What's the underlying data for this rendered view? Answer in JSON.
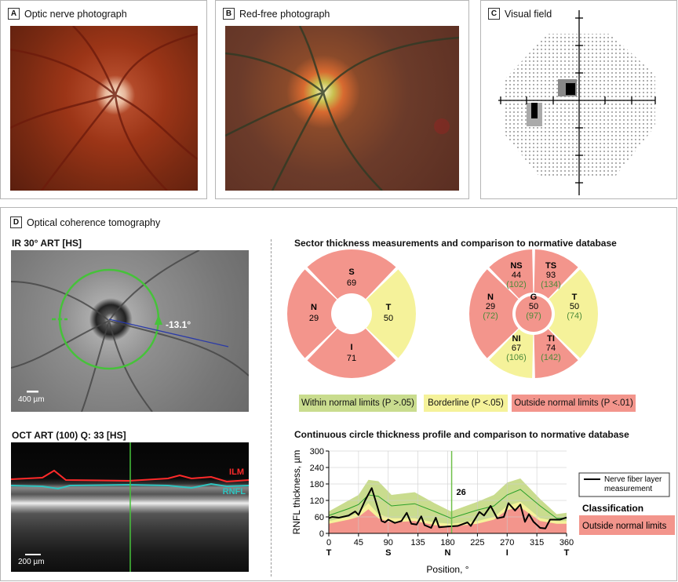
{
  "panels": {
    "a": {
      "letter": "A",
      "title": "Optic nerve photograph"
    },
    "b": {
      "letter": "B",
      "title": "Red-free photograph"
    },
    "c": {
      "letter": "C",
      "title": "Visual field"
    },
    "d": {
      "letter": "D",
      "title": "Optical coherence tomography"
    }
  },
  "ir_image": {
    "title": "IR 30° ART [HS]",
    "angle_label": "-13.1°",
    "scale_label": "400 µm"
  },
  "oct_image": {
    "title": "OCT ART (100) Q: 33 [HS]",
    "ilm_label": "ILM",
    "rnfl_label": "RNFL",
    "scale_label": "200 µm"
  },
  "sectors": {
    "title": "Sector thickness measurements and comparison to normative database",
    "colors": {
      "within": "#c9dc8e",
      "borderline": "#f5f29a",
      "outside": "#f3958c",
      "normative_text": "#4d8a3a"
    },
    "quadrant": [
      {
        "name": "S",
        "value": "69",
        "class": "outside"
      },
      {
        "name": "T",
        "value": "50",
        "class": "borderline"
      },
      {
        "name": "I",
        "value": "71",
        "class": "outside"
      },
      {
        "name": "N",
        "value": "29",
        "class": "outside"
      }
    ],
    "sectoral": [
      {
        "name": "TS",
        "value": "93",
        "normative": "(134)",
        "class": "outside"
      },
      {
        "name": "T",
        "value": "50",
        "normative": "(74)",
        "class": "borderline"
      },
      {
        "name": "TI",
        "value": "74",
        "normative": "(142)",
        "class": "outside"
      },
      {
        "name": "NI",
        "value": "67",
        "normative": "(106)",
        "class": "borderline"
      },
      {
        "name": "N",
        "value": "29",
        "normative": "(72)",
        "class": "outside"
      },
      {
        "name": "NS",
        "value": "44",
        "normative": "(102)",
        "class": "outside"
      },
      {
        "name": "G",
        "value": "50",
        "normative": "(97)",
        "class": "outside"
      }
    ],
    "legend": {
      "within": "Within normal limits (P >.05)",
      "borderline": "Borderline  (P <.05)",
      "outside": "Outside normal limits  (P <.01)"
    }
  },
  "chart_data": {
    "type": "line",
    "title": "Continuous circle thickness profile and comparison to normative database",
    "xlabel": "Position, °",
    "ylabel": "RNFL thickness, µm",
    "xlim": [
      0,
      360
    ],
    "ylim": [
      0,
      300
    ],
    "xticks": [
      0,
      45,
      90,
      135,
      180,
      225,
      270,
      315,
      360
    ],
    "yticks": [
      0,
      60,
      120,
      180,
      240,
      300
    ],
    "sector_labels": [
      {
        "x": 0,
        "label": "T"
      },
      {
        "x": 90,
        "label": "S"
      },
      {
        "x": 180,
        "label": "N"
      },
      {
        "x": 270,
        "label": "I"
      },
      {
        "x": 360,
        "label": "T"
      }
    ],
    "grid": true,
    "marker": {
      "x": 186,
      "label": "26"
    },
    "legend": {
      "line_label": "Nerve fiber layer measurement",
      "classification_title": "Classification",
      "classification_value": "Outside normal limits"
    },
    "series": [
      {
        "name": "Nerve fiber layer measurement",
        "x": [
          0,
          5,
          15,
          30,
          40,
          45,
          55,
          65,
          72,
          80,
          85,
          90,
          100,
          110,
          118,
          125,
          133,
          140,
          145,
          155,
          162,
          167,
          180,
          195,
          210,
          215,
          228,
          235,
          245,
          255,
          265,
          272,
          282,
          290,
          297,
          303,
          310,
          320,
          328,
          335,
          350,
          360
        ],
        "y": [
          55,
          60,
          57,
          65,
          80,
          67,
          120,
          165,
          110,
          45,
          40,
          50,
          38,
          45,
          75,
          35,
          32,
          62,
          30,
          20,
          57,
          22,
          25,
          27,
          40,
          27,
          78,
          65,
          100,
          55,
          60,
          110,
          83,
          105,
          42,
          70,
          42,
          20,
          18,
          50,
          50,
          58
        ]
      }
    ],
    "normative": {
      "x": [
        0,
        30,
        45,
        60,
        75,
        95,
        130,
        160,
        185,
        225,
        250,
        270,
        290,
        320,
        345,
        360
      ],
      "upper": [
        80,
        120,
        140,
        195,
        190,
        140,
        150,
        110,
        80,
        115,
        140,
        185,
        200,
        125,
        70,
        75
      ],
      "mean": [
        65,
        90,
        105,
        140,
        135,
        100,
        108,
        80,
        55,
        85,
        100,
        140,
        160,
        100,
        55,
        55
      ],
      "borderline_upper": [
        45,
        60,
        75,
        110,
        70,
        55,
        55,
        40,
        35,
        45,
        60,
        100,
        115,
        55,
        45,
        45
      ],
      "outside_upper": [
        35,
        50,
        60,
        88,
        55,
        40,
        45,
        30,
        25,
        35,
        50,
        85,
        95,
        45,
        35,
        35
      ]
    },
    "colors": {
      "measurement": "#000000",
      "mean": "#2aa02a",
      "within": "#c9dc8e",
      "borderline": "#f5f29a",
      "outside": "#f3958c",
      "marker": "#6ec04a"
    }
  }
}
